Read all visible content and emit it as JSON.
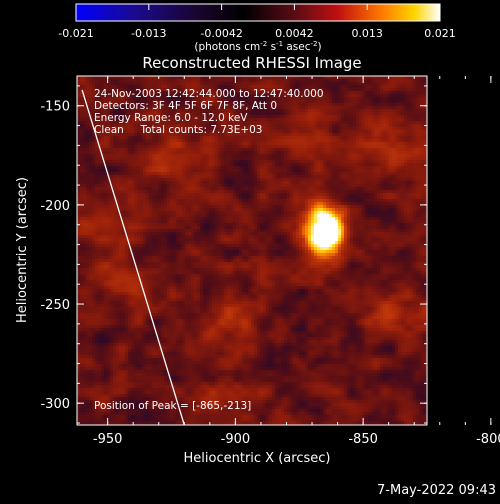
{
  "chart_data": {
    "type": "heatmap",
    "title": "Reconstructed RHESSI Image",
    "xlabel": "Heliocentric X (arcsec)",
    "ylabel": "Heliocentric Y (arcsec)",
    "xlim": [
      -962,
      -825
    ],
    "ylim": [
      -311,
      -135
    ],
    "xticks": [
      -950,
      -900,
      -850,
      -800
    ],
    "yticks": [
      -150,
      -200,
      -250,
      -300
    ],
    "colorbar": {
      "ticks": [
        "-0.021",
        "-0.013",
        "-0.0042",
        "0.0042",
        "0.013",
        "0.021"
      ],
      "range": [
        -0.021,
        0.021
      ],
      "units_label": "(photons cm",
      "units_sup1": "-2",
      "units_mid1": " s",
      "units_sup2": "-1",
      "units_mid2": " asec",
      "units_sup3": "-2",
      "units_end": ")"
    },
    "annotations": [
      "24-Nov-2003 12:42:44.000 to 12:47:40.000",
      "Detectors: 3F 4F 5F 6F 7F 8F, Att 0",
      "Energy Range: 6.0 - 12.0 keV",
      "Clean     Total counts: 7.73E+03"
    ],
    "peak_label": "Position of Peak = [-865,-213]",
    "peak": [
      -865,
      -213
    ],
    "limb_line": true,
    "colormap": "black-purple-red-orange-yellow-white"
  },
  "footer": {
    "timestamp": "7-May-2022 09:43"
  }
}
